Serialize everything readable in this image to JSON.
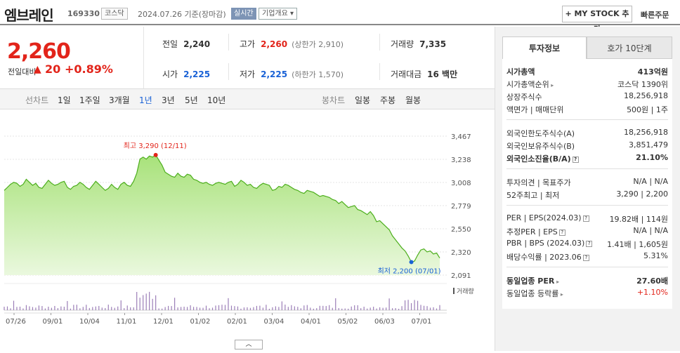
{
  "header": {
    "name": "엠브레인",
    "code": "169330",
    "market": "코스닥",
    "date": "2024.07.26  기준(장마감)",
    "realtime": "실시간",
    "company_info": "기업개요",
    "mystock": "+ MY STOCK 추가",
    "quick_order": "빠른주문"
  },
  "price": {
    "current": "2,260",
    "change_label": "전일대비",
    "change_arrow": "▲",
    "change": "20",
    "change_pct": "+0.89%"
  },
  "stats": {
    "prev_close_label": "전일",
    "prev_close": "2,240",
    "high_label": "고가",
    "high": "2,260",
    "upper_limit": "(상한가 2,910)",
    "volume_label": "거래량",
    "volume": "7,335",
    "open_label": "시가",
    "open": "2,225",
    "low_label": "저가",
    "low": "2,225",
    "lower_limit": "(하한가 1,570)",
    "amount_label": "거래대금",
    "amount": "16 백만"
  },
  "period_bar": {
    "line_label": "선차트",
    "periods": [
      "1일",
      "1주일",
      "3개월",
      "1년",
      "3년",
      "5년",
      "10년"
    ],
    "active": "1년",
    "candle_label": "봉차트",
    "candles": [
      "일봉",
      "주봉",
      "월봉"
    ]
  },
  "chart_data": {
    "type": "area",
    "y_ticks": [
      "3,467",
      "3,238",
      "3,008",
      "2,779",
      "2,550",
      "2,320",
      "2,091"
    ],
    "ylim": [
      2091,
      3467
    ],
    "x_ticks": [
      "07/26",
      "09/01",
      "10/04",
      "11/01",
      "12/01",
      "01/02",
      "02/01",
      "03/04",
      "04/01",
      "05/02",
      "06/03",
      "07/01"
    ],
    "high_annotation": "최고 3,290 (12/11)",
    "low_annotation": "최저 2,200 (07/01)",
    "volume_label": "거래량",
    "values": [
      2930,
      2960,
      2990,
      3010,
      3000,
      2970,
      2990,
      3040,
      3010,
      2980,
      3000,
      2960,
      2950,
      2990,
      3030,
      3000,
      2980,
      2990,
      3010,
      3020,
      2960,
      2940,
      2970,
      2980,
      3010,
      2990,
      2960,
      2940,
      2980,
      3020,
      2990,
      2960,
      2930,
      2950,
      2990,
      2960,
      2940,
      2990,
      3010,
      2980,
      2970,
      3020,
      3100,
      3240,
      3260,
      3240,
      3270,
      3260,
      3280,
      3230,
      3180,
      3110,
      3090,
      3070,
      3060,
      3100,
      3070,
      3060,
      3090,
      3080,
      3040,
      3030,
      3010,
      3000,
      3010,
      2990,
      2980,
      3000,
      3010,
      3000,
      2990,
      3010,
      3020,
      2970,
      2990,
      3030,
      3010,
      2980,
      2990,
      2960,
      2950,
      2980,
      3000,
      2990,
      2980,
      2930,
      2940,
      2970,
      2960,
      2990,
      2980,
      2960,
      2940,
      2930,
      2910,
      2900,
      2930,
      2920,
      2910,
      2890,
      2870,
      2880,
      2870,
      2860,
      2840,
      2830,
      2800,
      2820,
      2790,
      2760,
      2770,
      2780,
      2740,
      2730,
      2710,
      2690,
      2720,
      2680,
      2620,
      2630,
      2600,
      2570,
      2540,
      2480,
      2440,
      2400,
      2360,
      2330,
      2280,
      2220,
      2230,
      2290,
      2340,
      2350,
      2320,
      2330,
      2300,
      2310,
      2260
    ]
  },
  "sidebar": {
    "tab_active": "투자정보",
    "tab_other": "호가 10단계",
    "market_cap_label": "시가총액",
    "market_cap": "413억원",
    "rank_label": "시가총액순위",
    "rank": "코스닥 1390위",
    "shares_label": "상장주식수",
    "shares": "18,256,918",
    "par_label": "액면가 | 매매단위",
    "par": "500원 | 1주",
    "foreign_limit_label": "외국인한도주식수(A)",
    "foreign_limit": "18,256,918",
    "foreign_hold_label": "외국인보유주식수(B)",
    "foreign_hold": "3,851,479",
    "foreign_rate_label": "외국인소진율(B/A)",
    "foreign_rate": "21.10%",
    "opinion_label": "투자의견 | 목표주가",
    "opinion": "N/A | N/A",
    "w52_label": "52주최고 | 최저",
    "w52": "3,290 | 2,200",
    "per_label": "PER | EPS(2024.03)",
    "per": "19.82배 | 114원",
    "est_per_label": "추정PER | EPS",
    "est_per": "N/A | N/A",
    "pbr_label": "PBR | BPS (2024.03)",
    "pbr": "1.41배 | 1,605원",
    "div_label": "배당수익률 | 2023.06",
    "div": "5.31%",
    "sector_per_label": "동일업종 PER",
    "sector_per": "27.60배",
    "sector_chg_label": "동일업종 등락률",
    "sector_chg": "+1.10%"
  }
}
